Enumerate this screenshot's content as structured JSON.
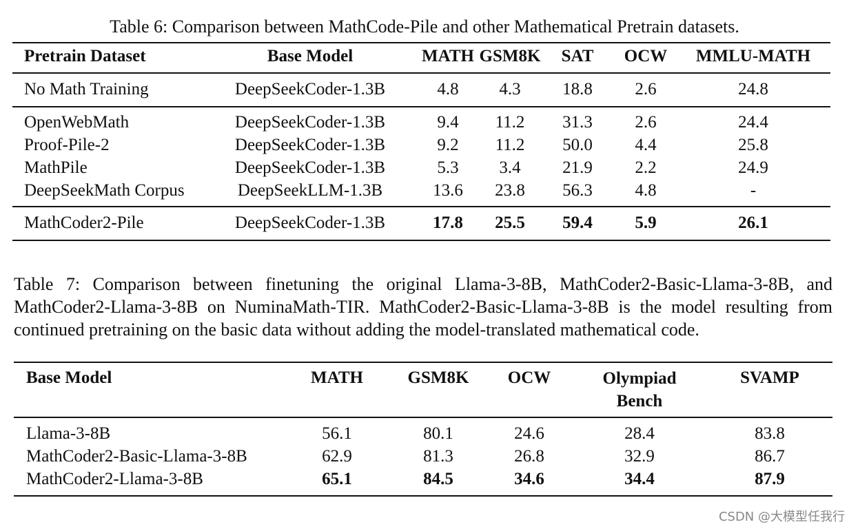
{
  "table6": {
    "caption": "Table 6: Comparison between MathCode-Pile and other Mathematical Pretrain datasets.",
    "header": [
      "Pretrain Dataset",
      "Base Model",
      "MATH",
      "GSM8K",
      "SAT",
      "OCW",
      "MMLU-MATH"
    ],
    "rows": [
      [
        "No Math Training",
        "DeepSeekCoder-1.3B",
        "4.8",
        "4.3",
        "18.8",
        "2.6",
        "24.8"
      ],
      [
        "OpenWebMath",
        "DeepSeekCoder-1.3B",
        "9.4",
        "11.2",
        "31.3",
        "2.6",
        "24.4"
      ],
      [
        "Proof-Pile-2",
        "DeepSeekCoder-1.3B",
        "9.2",
        "11.2",
        "50.0",
        "4.4",
        "25.8"
      ],
      [
        "MathPile",
        "DeepSeekCoder-1.3B",
        "5.3",
        "3.4",
        "21.9",
        "2.2",
        "24.9"
      ],
      [
        "DeepSeekMath Corpus",
        "DeepSeekLLM-1.3B",
        "13.6",
        "23.8",
        "56.3",
        "4.8",
        "-"
      ],
      [
        "MathCoder2-Pile",
        "DeepSeekCoder-1.3B",
        "17.8",
        "25.5",
        "59.4",
        "5.9",
        "26.1"
      ]
    ]
  },
  "table7": {
    "caption": "Table 7: Comparison between finetuning the original Llama-3-8B, MathCoder2-Basic-Llama-3-8B, and MathCoder2-Llama-3-8B on NuminaMath-TIR. MathCoder2-Basic-Llama-3-8B is the model resulting from continued pretraining on the basic data without adding the model-translated mathematical code.",
    "header": [
      "Base Model",
      "MATH",
      "GSM8K",
      "OCW",
      "Olympiad Bench",
      "SVAMP"
    ],
    "rows": [
      [
        "Llama-3-8B",
        "56.1",
        "80.1",
        "24.6",
        "28.4",
        "83.8"
      ],
      [
        "MathCoder2-Basic-Llama-3-8B",
        "62.9",
        "81.3",
        "26.8",
        "32.9",
        "86.7"
      ],
      [
        "MathCoder2-Llama-3-8B",
        "65.1",
        "84.5",
        "34.6",
        "34.4",
        "87.9"
      ]
    ]
  },
  "watermark": "CSDN @大模型任我行"
}
